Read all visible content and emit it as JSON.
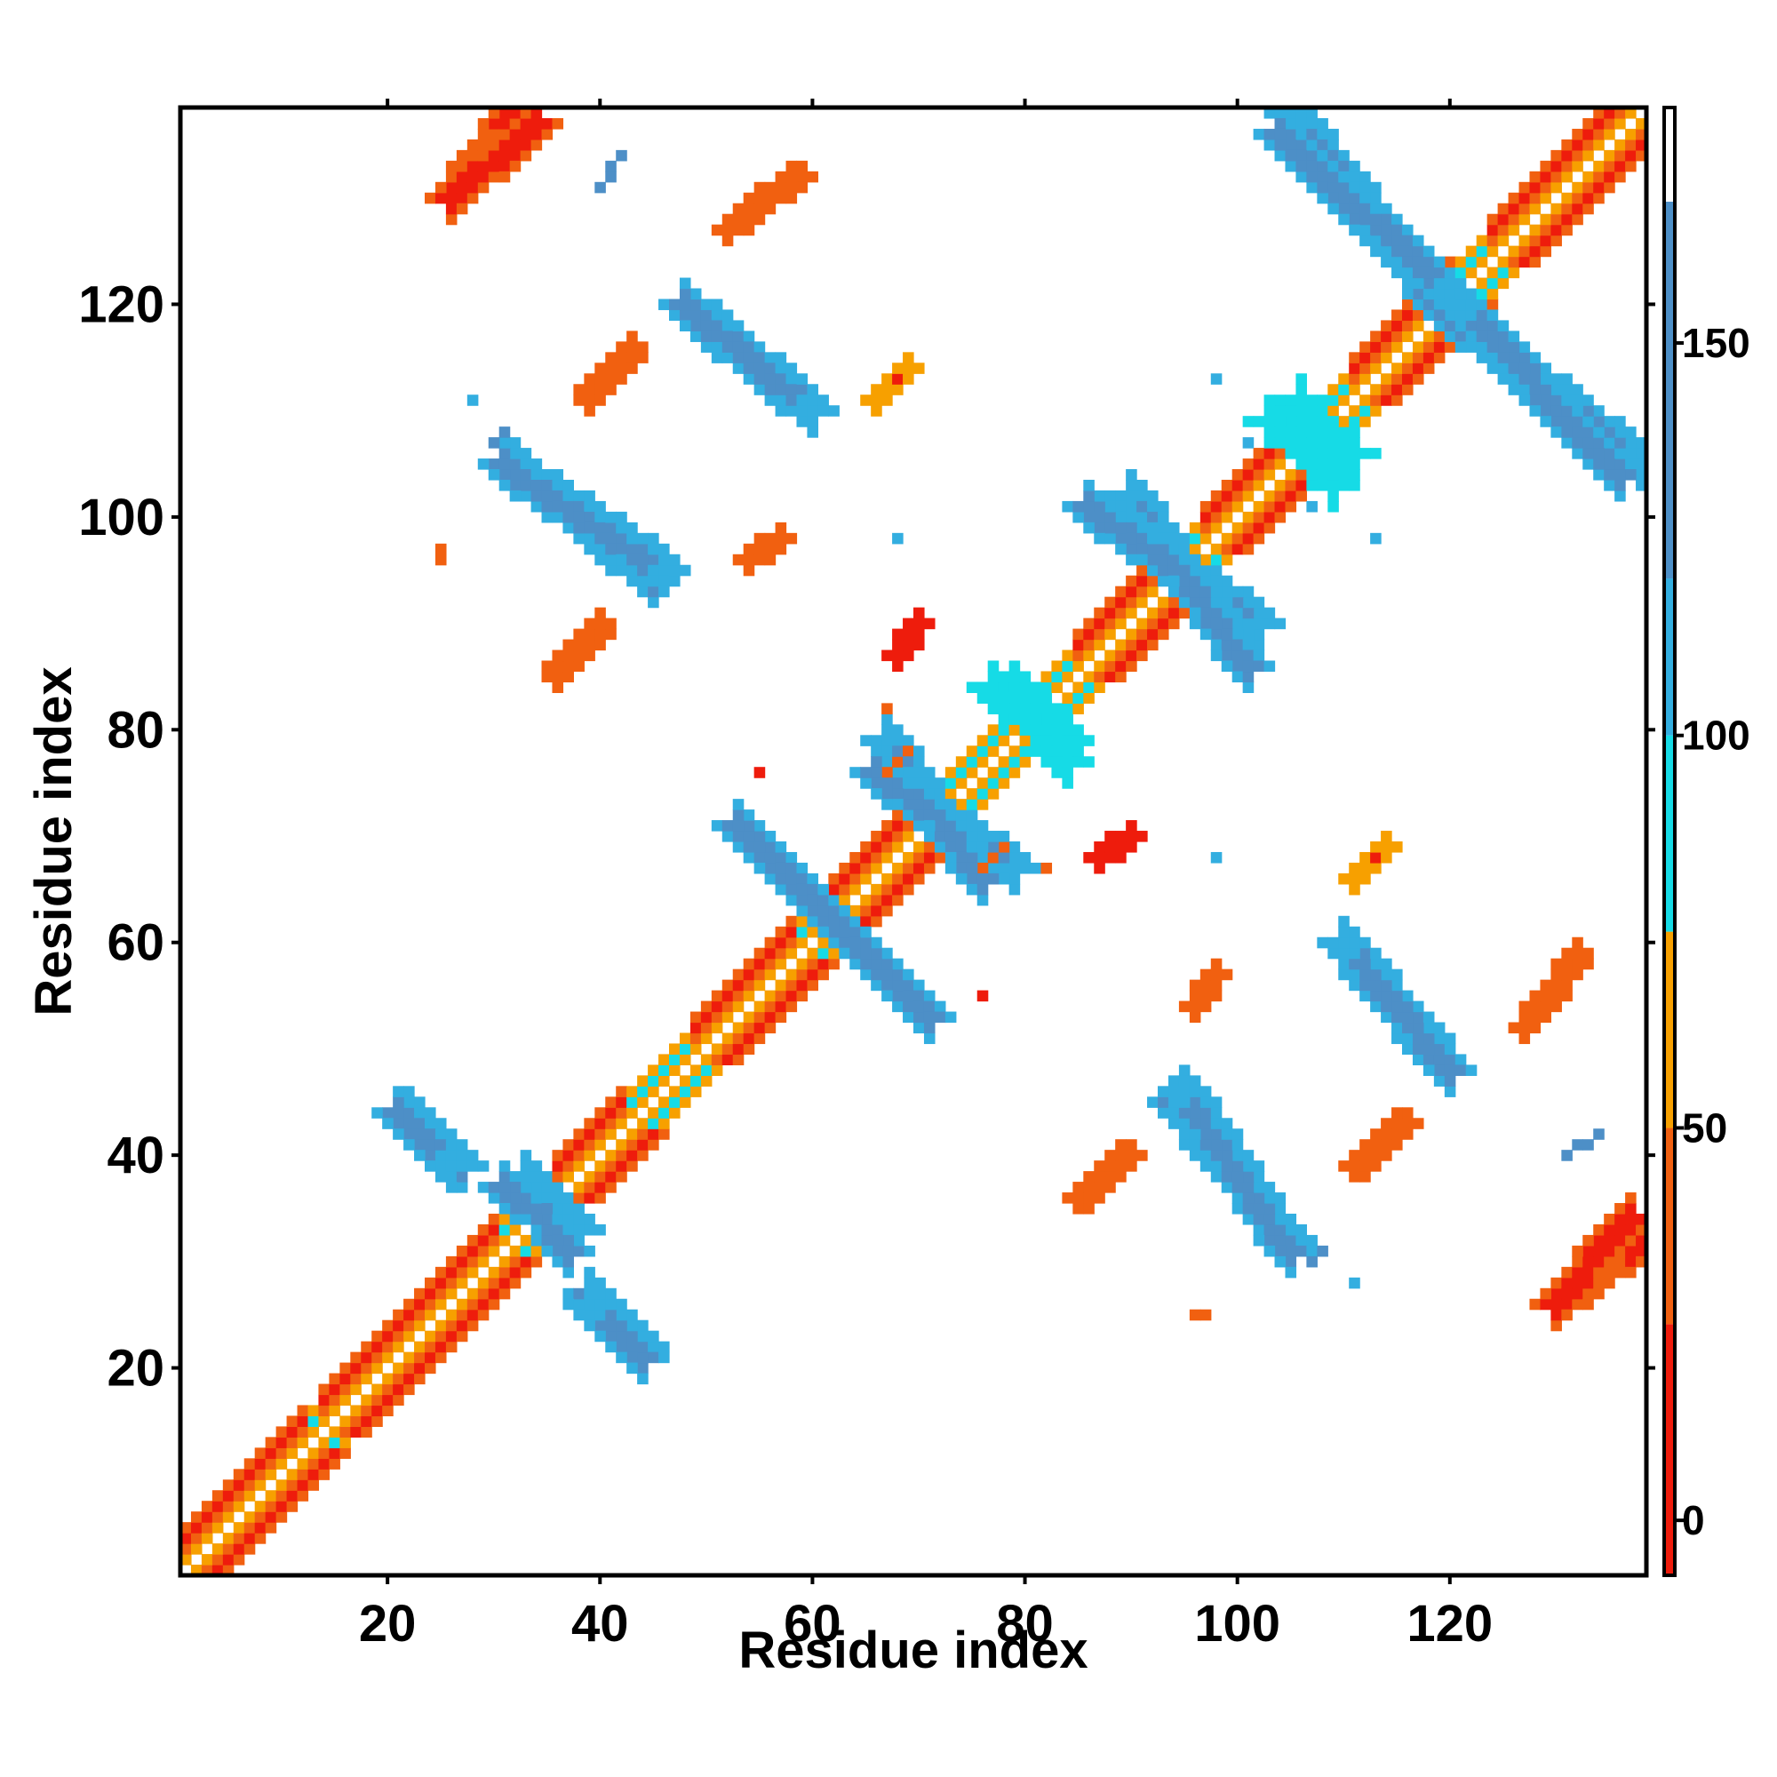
{
  "chart_data": {
    "type": "heatmap",
    "title": "",
    "xlabel": "Residue index",
    "ylabel": "Residue index",
    "xlim": [
      1,
      138
    ],
    "ylim": [
      1,
      138
    ],
    "x_ticks": [
      20,
      40,
      60,
      80,
      100,
      120
    ],
    "y_ticks": [
      20,
      40,
      60,
      80,
      100,
      120
    ],
    "grid": false,
    "colorbar": {
      "range": [
        -7,
        180
      ],
      "ticks": [
        0,
        50,
        100,
        150
      ],
      "bands": [
        {
          "from": -7,
          "to": 25,
          "color": "#ee1c0c"
        },
        {
          "from": 25,
          "to": 50,
          "color": "#f16010"
        },
        {
          "from": 50,
          "to": 75,
          "color": "#f7a000"
        },
        {
          "from": 75,
          "to": 100,
          "color": "#16dbe6"
        },
        {
          "from": 100,
          "to": 120,
          "color": "#33aee0"
        },
        {
          "from": 120,
          "to": 168,
          "color": "#4d8fc7"
        },
        {
          "from": 168,
          "to": 180,
          "color": "#ffffff"
        }
      ]
    },
    "regions": [
      {
        "kind": "diagonal",
        "from": 1,
        "to": 138
      },
      {
        "kind": "helix",
        "from": 1,
        "to": 12
      },
      {
        "kind": "helix",
        "from": 14,
        "to": 30
      },
      {
        "kind": "helix",
        "from": 36,
        "to": 42
      },
      {
        "kind": "helix",
        "from": 49,
        "to": 58
      },
      {
        "kind": "helix",
        "from": 62,
        "to": 70
      },
      {
        "kind": "helix",
        "from": 85,
        "to": 92
      },
      {
        "kind": "helix",
        "from": 97,
        "to": 104
      },
      {
        "kind": "helix",
        "from": 111,
        "to": 120
      },
      {
        "kind": "helix",
        "from": 124,
        "to": 137
      },
      {
        "kind": "antiparallel",
        "x": [
          56,
          71
        ],
        "y": [
          68,
          53
        ],
        "value": 160
      },
      {
        "kind": "antiparallel",
        "x": [
          67,
          76
        ],
        "y": [
          79,
          66
        ],
        "value": 155
      },
      {
        "kind": "antiparallel",
        "x": [
          90,
          101
        ],
        "y": [
          102,
          86
        ],
        "value": 160
      },
      {
        "kind": "antiparallel",
        "x": [
          105,
          120
        ],
        "y": [
          138,
          119
        ],
        "value": 160
      },
      {
        "kind": "antiparallel",
        "x": [
          121,
          136
        ],
        "y": [
          120,
          104
        ],
        "value": 160
      },
      {
        "kind": "antiparallel",
        "x": [
          49,
          60
        ],
        "y": [
          119,
          110
        ],
        "value": 160
      },
      {
        "kind": "antiparallel",
        "x": [
          32,
          45
        ],
        "y": [
          105,
          94
        ],
        "value": 160
      },
      {
        "kind": "antiparallel",
        "x": [
          95,
          105
        ],
        "y": [
          46,
          31
        ],
        "value": 160
      },
      {
        "kind": "antiparallel",
        "x": [
          110,
          120
        ],
        "y": [
          60,
          48
        ],
        "value": 160
      },
      {
        "kind": "antiparallel",
        "x": [
          22,
          27
        ],
        "y": [
          44,
          39
        ],
        "value": 160
      },
      {
        "kind": "antiparallel",
        "x": [
          39,
          44
        ],
        "y": [
          26,
          21
        ],
        "value": 160
      },
      {
        "kind": "antiparallel",
        "x": [
          33,
          37
        ],
        "y": [
          38,
          31
        ],
        "value": 160
      },
      {
        "kind": "antiparallel",
        "x": [
          79,
          84
        ],
        "y": [
          84,
          77
        ],
        "value": 95
      },
      {
        "kind": "antiparallel",
        "x": [
          106,
          109
        ],
        "y": [
          111,
          103
        ],
        "value": 95
      },
      {
        "kind": "antiparallel",
        "x": [
          26,
          33
        ],
        "y": [
          130,
          139
        ],
        "value": 10
      },
      {
        "kind": "antiparallel",
        "x": [
          130,
          137
        ],
        "y": [
          26,
          34
        ],
        "value": 10
      },
      {
        "kind": "line",
        "x": [
          52,
          58
        ],
        "y": [
          127,
          132
        ],
        "value": 40
      },
      {
        "kind": "line",
        "x": [
          39,
          43
        ],
        "y": [
          112,
          116
        ],
        "value": 40
      },
      {
        "kind": "line",
        "x": [
          36,
          40
        ],
        "y": [
          85,
          89
        ],
        "value": 40
      },
      {
        "kind": "line",
        "x": [
          86,
          90
        ],
        "y": [
          36,
          40
        ],
        "value": 40
      },
      {
        "kind": "line",
        "x": [
          127,
          132
        ],
        "y": [
          52,
          59
        ],
        "value": 40
      },
      {
        "kind": "line",
        "x": [
          111,
          115
        ],
        "y": [
          39,
          43
        ],
        "value": 40
      },
      {
        "kind": "line",
        "x": [
          68,
          70
        ],
        "y": [
          87,
          90
        ],
        "value": 15
      },
      {
        "kind": "line",
        "x": [
          87,
          90
        ],
        "y": [
          68,
          70
        ],
        "value": 15
      },
      {
        "kind": "line",
        "x": [
          96,
          98
        ],
        "y": [
          54,
          57
        ],
        "value": 40
      },
      {
        "kind": "line",
        "x": [
          54,
          57
        ],
        "y": [
          96,
          98
        ],
        "value": 40
      },
      {
        "kind": "line",
        "x": [
          66,
          69
        ],
        "y": [
          111,
          114
        ],
        "value": 55
      },
      {
        "kind": "point",
        "x": [
          25,
          25
        ],
        "y": [
          96,
          97
        ],
        "value": 45
      },
      {
        "kind": "point",
        "x": [
          111,
          111
        ],
        "y": [
          65,
          66
        ],
        "value": 55
      },
      {
        "kind": "point",
        "x": [
          96,
          97
        ],
        "y": [
          25,
          25
        ],
        "value": 45
      },
      {
        "kind": "point",
        "x": [
          67,
          67
        ],
        "y": [
          82,
          82
        ],
        "value": 45
      },
      {
        "kind": "point",
        "x": [
          55,
          55
        ],
        "y": [
          76,
          76
        ],
        "value": 15
      },
      {
        "kind": "point",
        "x": [
          76,
          76
        ],
        "y": [
          55,
          55
        ],
        "value": 15
      },
      {
        "kind": "point",
        "x": [
          82,
          82
        ],
        "y": [
          67,
          67
        ],
        "value": 45
      },
      {
        "kind": "point",
        "x": [
          113,
          113
        ],
        "y": [
          68,
          68
        ],
        "value": 15
      },
      {
        "kind": "point",
        "x": [
          68,
          68
        ],
        "y": [
          113,
          113
        ],
        "value": 15
      },
      {
        "kind": "point",
        "x": [
          98,
          98
        ],
        "y": [
          68,
          68
        ],
        "value": 110
      },
      {
        "kind": "point",
        "x": [
          68,
          68
        ],
        "y": [
          98,
          98
        ],
        "value": 110
      },
      {
        "kind": "point",
        "x": [
          98,
          98
        ],
        "y": [
          113,
          113
        ],
        "value": 110
      },
      {
        "kind": "point",
        "x": [
          113,
          113
        ],
        "y": [
          98,
          98
        ],
        "value": 110
      },
      {
        "kind": "point",
        "x": [
          111,
          111
        ],
        "y": [
          28,
          28
        ],
        "value": 110
      },
      {
        "kind": "point",
        "x": [
          28,
          28
        ],
        "y": [
          111,
          111
        ],
        "value": 110
      },
      {
        "kind": "point",
        "x": [
          30,
          31
        ],
        "y": [
          107,
          108
        ],
        "value": 120
      },
      {
        "kind": "point",
        "x": [
          107,
          108
        ],
        "y": [
          30,
          31
        ],
        "value": 120
      },
      {
        "kind": "point",
        "x": [
          40,
          42
        ],
        "y": [
          131,
          134
        ],
        "value": 150
      },
      {
        "kind": "point",
        "x": [
          131,
          134
        ],
        "y": [
          40,
          42
        ],
        "value": 150
      },
      {
        "kind": "point",
        "x": [
          76,
          78
        ],
        "y": [
          67,
          69
        ],
        "value": 40
      },
      {
        "kind": "point",
        "x": [
          101,
          101
        ],
        "y": [
          107,
          107
        ],
        "value": 110
      }
    ]
  }
}
